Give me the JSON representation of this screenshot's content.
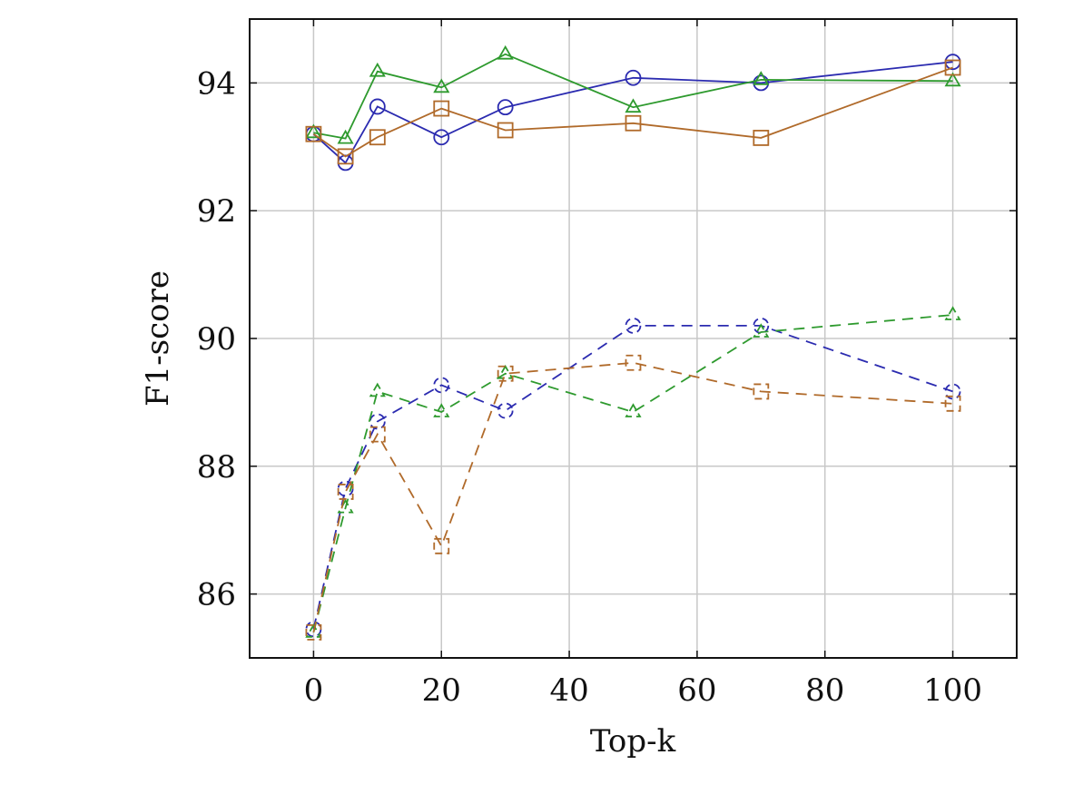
{
  "chart_data": {
    "type": "line",
    "xlabel": "Top-k",
    "ylabel": "F1-score",
    "xlim": [
      -10,
      110
    ],
    "ylim": [
      85,
      95
    ],
    "xticks": [
      0,
      20,
      40,
      60,
      80,
      100
    ],
    "yticks": [
      86,
      88,
      90,
      92,
      94
    ],
    "grid": true,
    "legend": null,
    "series": [
      {
        "name": "blue-solid",
        "color": "#2b2bb0",
        "dash": "solid",
        "marker": "circle",
        "x": [
          0,
          5,
          10,
          20,
          30,
          50,
          70,
          100
        ],
        "y": [
          93.2,
          92.75,
          93.63,
          93.15,
          93.62,
          94.08,
          94.0,
          94.33
        ]
      },
      {
        "name": "green-solid",
        "color": "#2e9a2e",
        "dash": "solid",
        "marker": "triangle",
        "x": [
          0,
          5,
          10,
          20,
          30,
          50,
          70,
          100
        ],
        "y": [
          93.22,
          93.13,
          94.18,
          93.93,
          94.45,
          93.62,
          94.05,
          94.03
        ]
      },
      {
        "name": "brown-solid",
        "color": "#b06a2a",
        "dash": "solid",
        "marker": "square",
        "x": [
          0,
          5,
          10,
          20,
          30,
          50,
          70,
          100
        ],
        "y": [
          93.2,
          92.85,
          93.15,
          93.6,
          93.26,
          93.37,
          93.14,
          94.24
        ]
      },
      {
        "name": "blue-dashed",
        "color": "#2b2bb0",
        "dash": "dashed",
        "marker": "circle",
        "x": [
          0,
          5,
          10,
          20,
          30,
          50,
          70,
          100
        ],
        "y": [
          85.45,
          87.65,
          88.7,
          89.27,
          88.87,
          90.2,
          90.2,
          89.17
        ]
      },
      {
        "name": "green-dashed",
        "color": "#2e9a2e",
        "dash": "dashed",
        "marker": "triangle",
        "x": [
          0,
          5,
          10,
          20,
          30,
          50,
          70,
          100
        ],
        "y": [
          85.4,
          87.35,
          89.17,
          88.85,
          89.45,
          88.85,
          90.1,
          90.37
        ]
      },
      {
        "name": "brown-dashed",
        "color": "#b06a2a",
        "dash": "dashed",
        "marker": "square",
        "x": [
          0,
          5,
          10,
          20,
          30,
          50,
          70,
          100
        ],
        "y": [
          85.4,
          87.6,
          88.5,
          86.75,
          89.45,
          89.62,
          89.17,
          88.98
        ]
      }
    ]
  }
}
